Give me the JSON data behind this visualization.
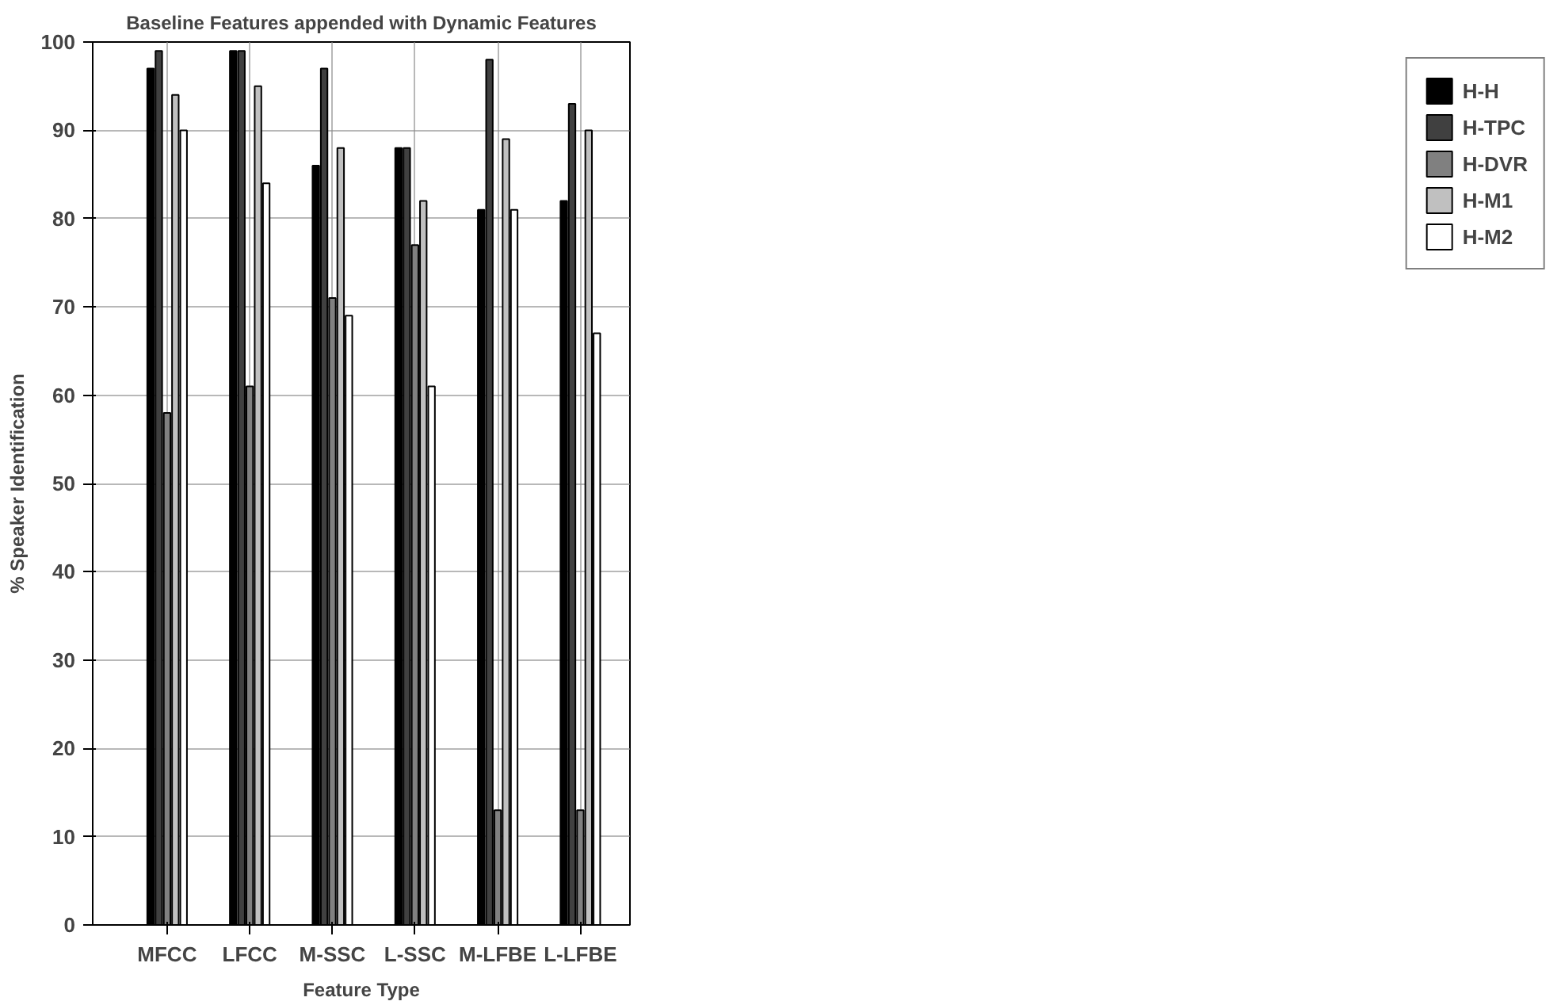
{
  "chart_data": {
    "type": "bar",
    "title": "Baseline Features appended with Dynamic Features",
    "xlabel": "Feature Type",
    "ylabel": "% Speaker Identification",
    "categories": [
      "MFCC",
      "LFCC",
      "M-SSC",
      "L-SSC",
      "M-LFBE",
      "L-LFBE"
    ],
    "series": [
      {
        "name": "H-H",
        "color": "#000000",
        "values": [
          97,
          99,
          86,
          88,
          81,
          82
        ]
      },
      {
        "name": "H-TPC",
        "color": "#404040",
        "values": [
          99,
          99,
          97,
          88,
          98,
          93
        ]
      },
      {
        "name": "H-DVR",
        "color": "#808080",
        "values": [
          58,
          61,
          71,
          77,
          13,
          13
        ]
      },
      {
        "name": "H-M1",
        "color": "#c0c0c0",
        "values": [
          94,
          95,
          88,
          82,
          89,
          90
        ]
      },
      {
        "name": "H-M2",
        "color": "#ffffff",
        "values": [
          90,
          84,
          69,
          61,
          81,
          67
        ]
      }
    ],
    "ylim": [
      0,
      100
    ],
    "yticks": [
      0,
      10,
      20,
      30,
      40,
      50,
      60,
      70,
      80,
      90,
      100
    ],
    "grid": true,
    "legend": "right"
  }
}
